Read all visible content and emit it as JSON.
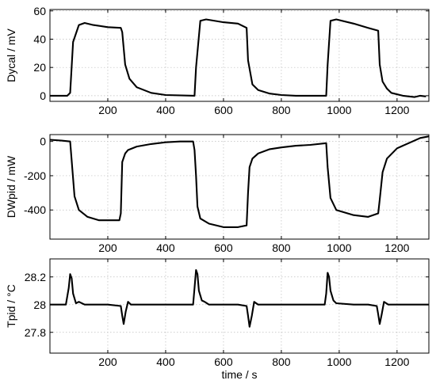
{
  "chart_data": [
    {
      "type": "line",
      "ylabel": "Dycal / mV",
      "xlim": [
        0,
        1310
      ],
      "ylim": [
        -4,
        61
      ],
      "xticks": [
        200,
        400,
        600,
        800,
        1000,
        1200
      ],
      "yticks": [
        0,
        20,
        40,
        60
      ],
      "grid": true,
      "series": [
        {
          "x": [
            0,
            60,
            70,
            80,
            100,
            120,
            150,
            200,
            245,
            250,
            260,
            275,
            300,
            350,
            400,
            500,
            505,
            520,
            540,
            600,
            650,
            680,
            685,
            700,
            720,
            760,
            800,
            850,
            900,
            955,
            960,
            970,
            990,
            1050,
            1100,
            1135,
            1140,
            1150,
            1165,
            1180,
            1220,
            1260,
            1280,
            1300
          ],
          "y": [
            0,
            0,
            2,
            38,
            50,
            51.5,
            50,
            48.5,
            48,
            45,
            22,
            12,
            6,
            2,
            0.5,
            0,
            20,
            53,
            54,
            52,
            51,
            48,
            25,
            8,
            4,
            1.5,
            0.5,
            0,
            0,
            0,
            22,
            53,
            54,
            51,
            48,
            46,
            22,
            10,
            5,
            2,
            0,
            -1,
            0,
            -0.5
          ]
        }
      ]
    },
    {
      "type": "line",
      "ylabel": "DWpid / mW",
      "xlim": [
        0,
        1310
      ],
      "ylim": [
        -570,
        40
      ],
      "xticks": [
        200,
        400,
        600,
        800,
        1000,
        1200
      ],
      "yticks": [
        -400,
        -200,
        0
      ],
      "grid": true,
      "series": [
        {
          "x": [
            0,
            40,
            70,
            85,
            100,
            130,
            170,
            200,
            240,
            245,
            250,
            260,
            270,
            300,
            350,
            400,
            450,
            495,
            500,
            505,
            510,
            520,
            550,
            600,
            650,
            680,
            685,
            690,
            700,
            720,
            760,
            800,
            850,
            900,
            955,
            960,
            970,
            990,
            1050,
            1100,
            1135,
            1140,
            1150,
            1165,
            1200,
            1240,
            1280,
            1310
          ],
          "y": [
            10,
            5,
            0,
            -320,
            -400,
            -440,
            -460,
            -460,
            -460,
            -420,
            -120,
            -70,
            -50,
            -30,
            -15,
            -5,
            0,
            0,
            -50,
            -200,
            -380,
            -450,
            -480,
            -500,
            -500,
            -490,
            -300,
            -150,
            -100,
            -70,
            -45,
            -35,
            -25,
            -20,
            -10,
            -150,
            -330,
            -400,
            -430,
            -440,
            -420,
            -340,
            -180,
            -100,
            -40,
            -10,
            20,
            30
          ]
        }
      ]
    },
    {
      "type": "line",
      "ylabel": "Tpid / °C",
      "xlabel": "time / s",
      "xlim": [
        0,
        1310
      ],
      "ylim": [
        27.65,
        28.33
      ],
      "xticks": [
        200,
        400,
        600,
        800,
        1000,
        1200
      ],
      "yticks": [
        27.8,
        28.0,
        28.2
      ],
      "yticklabels": [
        "27.8",
        "28",
        "28.2"
      ],
      "grid": true,
      "series": [
        {
          "x": [
            0,
            55,
            65,
            70,
            75,
            80,
            90,
            100,
            120,
            150,
            200,
            245,
            250,
            255,
            262,
            270,
            280,
            300,
            350,
            400,
            450,
            495,
            500,
            505,
            510,
            515,
            525,
            535,
            550,
            600,
            650,
            680,
            685,
            690,
            698,
            706,
            720,
            800,
            900,
            950,
            955,
            960,
            965,
            970,
            980,
            990,
            1050,
            1100,
            1130,
            1135,
            1140,
            1147,
            1155,
            1170,
            1250,
            1310
          ],
          "y": [
            28.0,
            28.0,
            28.12,
            28.22,
            28.19,
            28.08,
            28.01,
            28.02,
            28.0,
            28.0,
            28.0,
            27.99,
            27.92,
            27.86,
            27.95,
            28.02,
            28.0,
            28.0,
            28.0,
            28.0,
            28.0,
            28.0,
            28.12,
            28.25,
            28.22,
            28.1,
            28.03,
            28.02,
            28.0,
            28.0,
            28.0,
            27.99,
            27.92,
            27.84,
            27.92,
            28.02,
            28.0,
            28.0,
            28.0,
            28.0,
            28.08,
            28.23,
            28.2,
            28.1,
            28.03,
            28.01,
            28.0,
            28.0,
            27.99,
            27.93,
            27.86,
            27.93,
            28.02,
            28.0,
            28.0,
            28.0
          ]
        }
      ]
    }
  ]
}
